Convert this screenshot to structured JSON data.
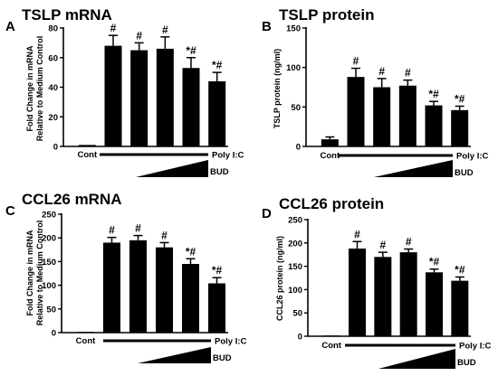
{
  "colors": {
    "bar": "#000000",
    "axis": "#000000",
    "background": "#ffffff"
  },
  "chart_data": [
    {
      "panel": "A",
      "type": "bar",
      "title": "TSLP mRNA",
      "ylabel_line1": "Fold Change in mRNA",
      "ylabel_line2": "Relative to Medium Control",
      "ylim": [
        0,
        80
      ],
      "yticks": [
        "0",
        "20",
        "40",
        "60",
        "80"
      ],
      "categories": [
        "Cont",
        "",
        "",
        "",
        "",
        ""
      ],
      "values": [
        1,
        68,
        65,
        66,
        53,
        44
      ],
      "errors": [
        0,
        7,
        5,
        8,
        7,
        6
      ],
      "sig_labels": [
        "",
        "#",
        "#",
        "#",
        "*#",
        "*#"
      ],
      "poly_label": "Poly I:C",
      "bud_label": "BUD",
      "grid": false
    },
    {
      "panel": "B",
      "type": "bar",
      "title": "TSLP protein",
      "ylabel_line1": "TSLP protein (ng/ml)",
      "ylabel_line2": "",
      "ylim": [
        0,
        150
      ],
      "yticks": [
        "0",
        "50",
        "100",
        "150"
      ],
      "categories": [
        "Cont",
        "",
        "",
        "",
        "",
        ""
      ],
      "values": [
        9,
        88,
        75,
        77,
        52,
        46
      ],
      "errors": [
        3,
        11,
        11,
        7,
        5,
        5
      ],
      "sig_labels": [
        "",
        "#",
        "#",
        "#",
        "*#",
        "*#"
      ],
      "poly_label": "Poly I:C",
      "bud_label": "BUD",
      "grid": false
    },
    {
      "panel": "C",
      "type": "bar",
      "title": "CCL26 mRNA",
      "ylabel_line1": "Fold Change in mRNA",
      "ylabel_line2": "Relative to Medium Control",
      "ylim": [
        0,
        250
      ],
      "yticks": [
        "0",
        "50",
        "100",
        "150",
        "200",
        "250"
      ],
      "categories": [
        "Cont",
        "",
        "",
        "",
        "",
        ""
      ],
      "values": [
        1,
        190,
        195,
        180,
        145,
        104
      ],
      "errors": [
        0,
        11,
        10,
        10,
        11,
        12
      ],
      "sig_labels": [
        "",
        "#",
        "#",
        "#",
        "*#",
        "*#"
      ],
      "poly_label": "Poly I:C",
      "bud_label": "BUD",
      "grid": false
    },
    {
      "panel": "D",
      "type": "bar",
      "title": "CCL26 protein",
      "ylabel_line1": "CCL26 protein (ng/ml)",
      "ylabel_line2": "",
      "ylim": [
        0,
        250
      ],
      "yticks": [
        "0",
        "50",
        "100",
        "150",
        "200",
        "250"
      ],
      "categories": [
        "Cont",
        "",
        "",
        "",
        "",
        ""
      ],
      "values": [
        0,
        188,
        170,
        180,
        137,
        119
      ],
      "errors": [
        0,
        15,
        10,
        7,
        7,
        8
      ],
      "sig_labels": [
        "",
        "#",
        "#",
        "#",
        "*#",
        "*#"
      ],
      "poly_label": "Poly I:C",
      "bud_label": "BUD",
      "grid": false
    }
  ]
}
